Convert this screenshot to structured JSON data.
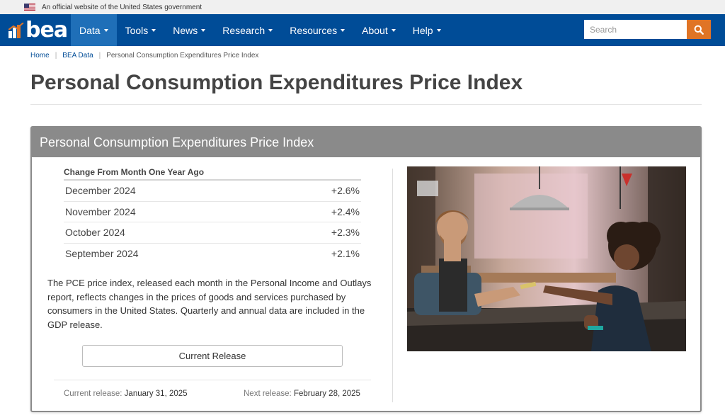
{
  "gov_banner": {
    "text": "An official website of the United States government"
  },
  "logo": {
    "text": "bea"
  },
  "nav": {
    "items": [
      {
        "label": "Data",
        "active": true
      },
      {
        "label": "Tools"
      },
      {
        "label": "News"
      },
      {
        "label": "Research"
      },
      {
        "label": "Resources"
      },
      {
        "label": "About"
      },
      {
        "label": "Help"
      }
    ]
  },
  "search": {
    "placeholder": "Search"
  },
  "breadcrumb": {
    "home": "Home",
    "bea_data": "BEA Data",
    "current": "Personal Consumption Expenditures Price Index"
  },
  "page_title": "Personal Consumption Expenditures Price Index",
  "card": {
    "title": "Personal Consumption Expenditures Price Index",
    "table_heading": "Change From Month One Year Ago",
    "rows": [
      {
        "month": "December 2024",
        "value": "+2.6%"
      },
      {
        "month": "November 2024",
        "value": "+2.4%"
      },
      {
        "month": "October 2024",
        "value": "+2.3%"
      },
      {
        "month": "September 2024",
        "value": "+2.1%"
      }
    ],
    "description": "The PCE price index, released each month in the Personal Income and Outlays report, reflects changes in the prices of goods and services purchased by consumers in the United States. Quarterly and annual data are included in the GDP release.",
    "button_label": "Current Release",
    "current_release_label": "Current release:",
    "current_release_date": "January 31, 2025",
    "next_release_label": "Next release:",
    "next_release_date": "February 28, 2025"
  },
  "colors": {
    "nav_bg": "#004c97",
    "nav_active": "#1f6fb8",
    "search_button": "#e07425",
    "card_header": "#8a8a8a"
  }
}
